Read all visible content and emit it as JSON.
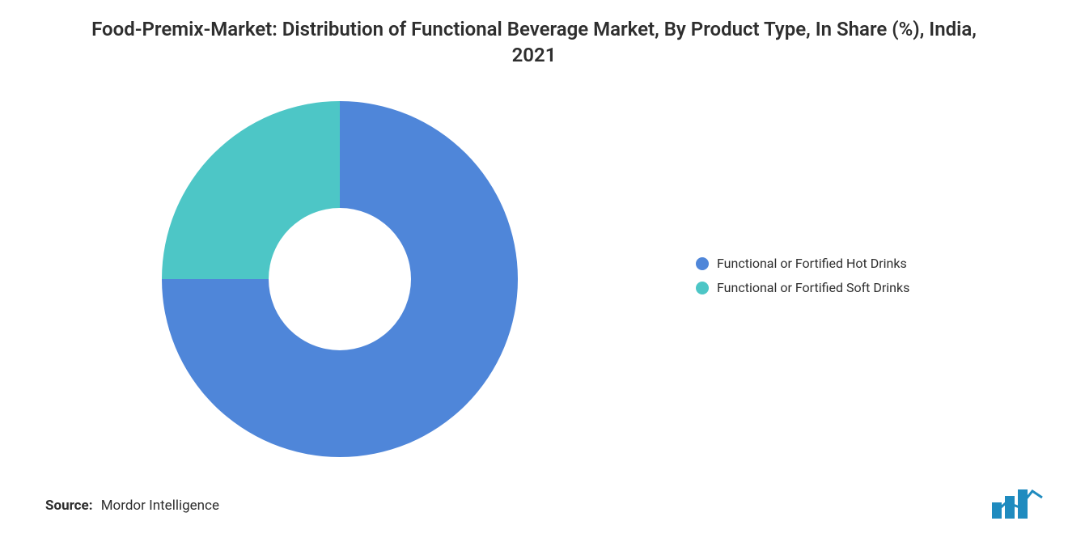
{
  "title": "Food-Premix-Market: Distribution of Functional Beverage Market, By Product Type, In Share (%), India, 2021",
  "chart": {
    "type": "donut",
    "background_color": "#ffffff",
    "inner_radius_ratio": 0.4,
    "outer_radius_ratio": 1.0,
    "start_angle_deg": 0,
    "slices": [
      {
        "label": "Functional or Fortified Hot Drinks",
        "value": 75,
        "color": "#4f86d9"
      },
      {
        "label": "Functional or Fortified Soft Drinks",
        "value": 25,
        "color": "#4dc6c6"
      }
    ]
  },
  "legend": {
    "position": "right",
    "items": [
      {
        "label": "Functional or Fortified Hot Drinks",
        "color": "#4f86d9"
      },
      {
        "label": "Functional or Fortified Soft Drinks",
        "color": "#4dc6c6"
      }
    ],
    "fontsize": 16,
    "text_color": "#2e2e2e"
  },
  "source": {
    "label": "Source:",
    "text": "Mordor Intelligence",
    "fontsize": 17,
    "text_color": "#2e2e2e"
  },
  "logo": {
    "bar_color": "#1f8bbf",
    "line_color": "#1f8bbf"
  },
  "typography": {
    "title_fontsize": 24,
    "title_weight": 600,
    "title_color": "#2e2e2e"
  }
}
